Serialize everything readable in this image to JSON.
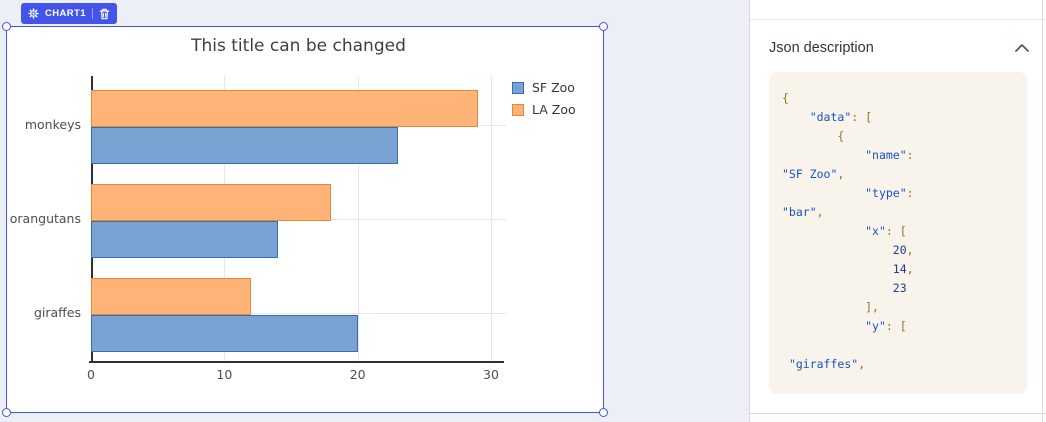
{
  "badge": {
    "label": "CHART1"
  },
  "panel": {
    "title": "Json description",
    "code_lines": [
      "{",
      "    \"data\": [",
      "        {",
      "            \"name\":",
      "\"SF Zoo\",",
      "            \"type\":",
      "\"bar\",",
      "            \"x\": [",
      "                20,",
      "                14,",
      "                23",
      "            ],",
      "            \"y\": [",
      "",
      " \"giraffes\","
    ]
  },
  "chart_data": {
    "type": "bar",
    "orientation": "horizontal",
    "title": "This title can be changed",
    "categories": [
      "monkeys",
      "orangutans",
      "giraffes"
    ],
    "series": [
      {
        "name": "SF Zoo",
        "values": [
          23,
          14,
          20
        ],
        "fill": "#79a3d2",
        "border": "#3a6bb0"
      },
      {
        "name": "LA Zoo",
        "values": [
          29,
          18,
          12
        ],
        "fill": "#ffb377",
        "border": "#e5873b"
      }
    ],
    "bar_order_top_to_bottom_in_group": [
      "LA Zoo",
      "SF Zoo"
    ],
    "xticks": [
      0,
      10,
      20,
      30
    ],
    "xlim": [
      0,
      31.1
    ],
    "grid": true,
    "legend_position": "outside-top-right"
  },
  "colors": {
    "accent": "#4355e8",
    "selection_border": "#4254e8",
    "code_background": "#f8f4eb",
    "code_string": "#1a50c8",
    "code_number": "#22398c",
    "code_punctuation": "#96731f"
  }
}
